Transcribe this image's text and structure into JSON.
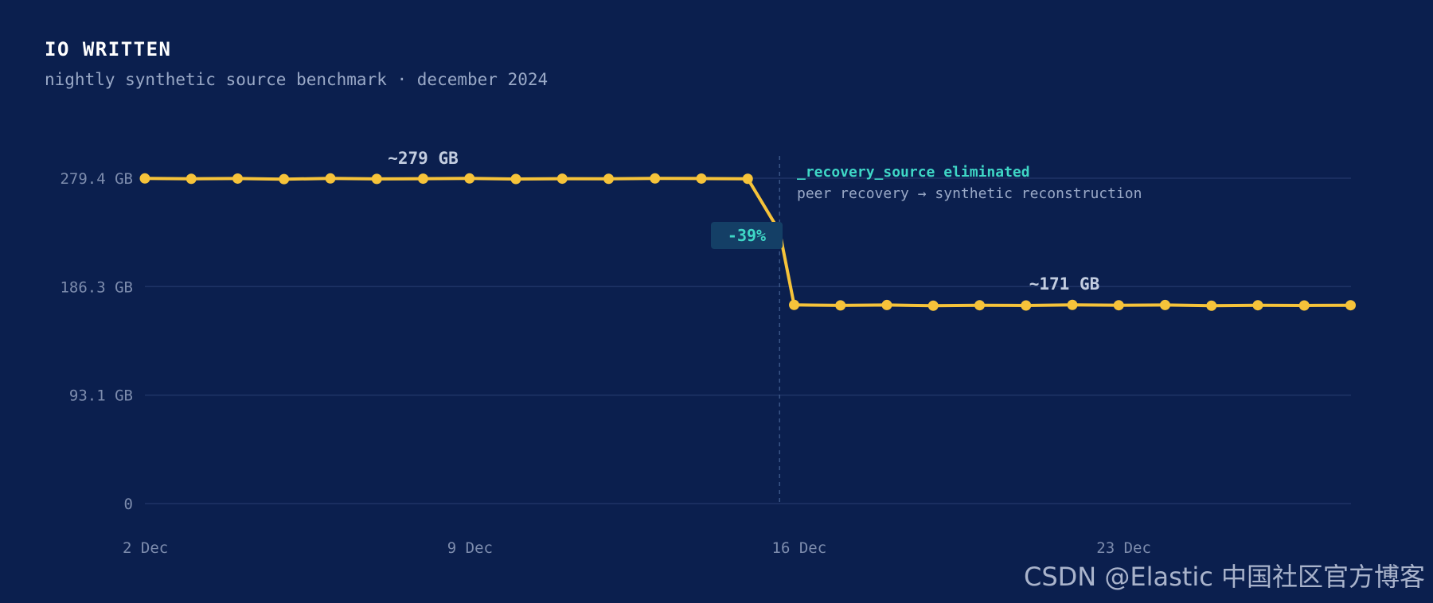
{
  "header": {
    "title": "IO WRITTEN",
    "subtitle": "nightly synthetic source benchmark · december 2024"
  },
  "chart_data": {
    "type": "line",
    "y_unit": "GB",
    "ylim": [
      0,
      279.4
    ],
    "y_ticks": [
      {
        "value": 0,
        "label": "0"
      },
      {
        "value": 93.1,
        "label": "93.1 GB"
      },
      {
        "value": 186.3,
        "label": "186.3 GB"
      },
      {
        "value": 279.4,
        "label": "279.4 GB"
      }
    ],
    "x_ticks": [
      {
        "date": "2024-12-02",
        "label": "2 Dec"
      },
      {
        "date": "2024-12-09",
        "label": "9 Dec"
      },
      {
        "date": "2024-12-16",
        "label": "16 Dec"
      },
      {
        "date": "2024-12-23",
        "label": "23 Dec"
      }
    ],
    "xlim": [
      "2024-12-02",
      "2024-12-28"
    ],
    "grid": true,
    "series": [
      {
        "color": "#f6c33a",
        "points": [
          {
            "x": "2024-12-02",
            "y": 279.2
          },
          {
            "x": "2024-12-03",
            "y": 278.9
          },
          {
            "x": "2024-12-04",
            "y": 279.1
          },
          {
            "x": "2024-12-05",
            "y": 278.6
          },
          {
            "x": "2024-12-06",
            "y": 279.2
          },
          {
            "x": "2024-12-07",
            "y": 278.8
          },
          {
            "x": "2024-12-08",
            "y": 279.0
          },
          {
            "x": "2024-12-09",
            "y": 279.2
          },
          {
            "x": "2024-12-10",
            "y": 278.7
          },
          {
            "x": "2024-12-11",
            "y": 279.0
          },
          {
            "x": "2024-12-12",
            "y": 278.9
          },
          {
            "x": "2024-12-13",
            "y": 279.2
          },
          {
            "x": "2024-12-14",
            "y": 279.1
          },
          {
            "x": "2024-12-15",
            "y": 278.9
          },
          {
            "x": "2024-12-16",
            "y": 170.6
          },
          {
            "x": "2024-12-17",
            "y": 170.2
          },
          {
            "x": "2024-12-18",
            "y": 170.5
          },
          {
            "x": "2024-12-19",
            "y": 169.9
          },
          {
            "x": "2024-12-20",
            "y": 170.3
          },
          {
            "x": "2024-12-21",
            "y": 170.1
          },
          {
            "x": "2024-12-22",
            "y": 170.6
          },
          {
            "x": "2024-12-23",
            "y": 170.3
          },
          {
            "x": "2024-12-24",
            "y": 170.5
          },
          {
            "x": "2024-12-25",
            "y": 169.9
          },
          {
            "x": "2024-12-26",
            "y": 170.3
          },
          {
            "x": "2024-12-27",
            "y": 170.1
          },
          {
            "x": "2024-12-28",
            "y": 170.3
          }
        ]
      }
    ],
    "annotations": {
      "before_label": "~279 GB",
      "after_label": "~171 GB",
      "change_label": "-39%",
      "event_date": "2024-12-15",
      "event_title": "_recovery_source eliminated",
      "event_desc": "peer recovery → synthetic reconstruction"
    }
  },
  "colors": {
    "background": "#0b1f4e",
    "line": "#f6c33a",
    "accent": "#3fd7c6",
    "muted": "#7d8cad",
    "grid": "#1f3466"
  },
  "watermark": "CSDN @Elastic 中国社区官方博客"
}
